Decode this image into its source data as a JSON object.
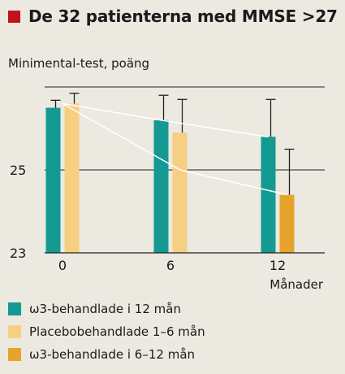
{
  "title": "De 32 patienterna med MMSE >27",
  "colors": {
    "title_marker": "#c0141c",
    "background": "#ebe9e0"
  },
  "chart_data": {
    "type": "bar",
    "ylabel": "Minimental-test, poäng",
    "xlabel": "Månader",
    "categories": [
      "0",
      "6",
      "12"
    ],
    "yticks": [
      "23",
      "25"
    ],
    "ylim": [
      23,
      27
    ],
    "grid": true,
    "series": [
      {
        "name": "ω3-behandlade i 12 mån",
        "color": "#149a93",
        "values": [
          26.5,
          26.2,
          25.8
        ],
        "errors": [
          0.18,
          0.6,
          0.9
        ]
      },
      {
        "name": "Placebobehandlade 1–6 mån",
        "color": "#f7cf82",
        "values": [
          26.6,
          25.9,
          null
        ],
        "errors": [
          0.25,
          0.8,
          null
        ]
      },
      {
        "name": "ω3-behandlade i 6–12 mån",
        "color": "#e8a42a",
        "values": [
          null,
          null,
          24.4
        ],
        "errors": [
          null,
          null,
          1.1
        ]
      }
    ],
    "trend_lines": [
      {
        "color": "#ffffff",
        "points": [
          [
            0,
            26.6
          ],
          [
            6,
            26.2
          ],
          [
            12,
            25.8
          ]
        ]
      },
      {
        "color": "#ffffff",
        "points": [
          [
            0,
            26.6
          ],
          [
            6,
            25.0
          ],
          [
            12,
            24.4
          ]
        ]
      }
    ]
  }
}
